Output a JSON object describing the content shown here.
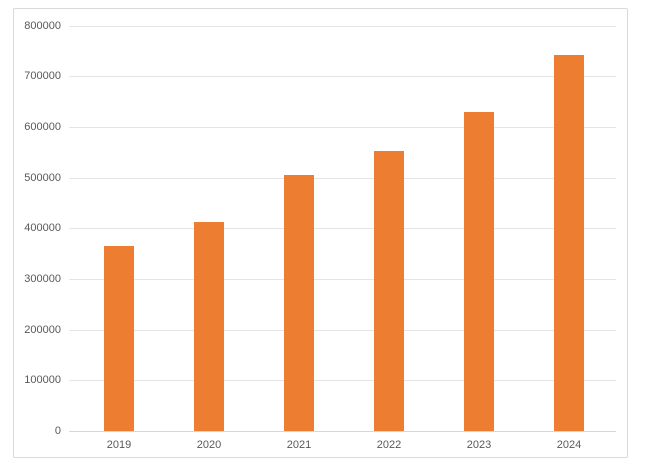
{
  "chart_data": {
    "type": "bar",
    "categories": [
      "2019",
      "2020",
      "2021",
      "2022",
      "2023",
      "2024"
    ],
    "values": [
      365000,
      412000,
      506000,
      553000,
      630000,
      741000
    ],
    "title": "",
    "xlabel": "",
    "ylabel": "",
    "ylim": [
      0,
      800000
    ],
    "ytick_step": 100000,
    "ytick_labels": [
      "0",
      "100000",
      "200000",
      "300000",
      "400000",
      "500000",
      "600000",
      "700000",
      "800000"
    ],
    "grid": true,
    "legend": false,
    "bar_color": "#ED7D31"
  },
  "colors": {
    "bar": "#ED7D31",
    "gridline": "#E4E4E4",
    "axis_line": "#D6D6D6",
    "tick_label": "#595959",
    "frame_border": "#D9D9D9",
    "background": "#FFFFFF"
  }
}
